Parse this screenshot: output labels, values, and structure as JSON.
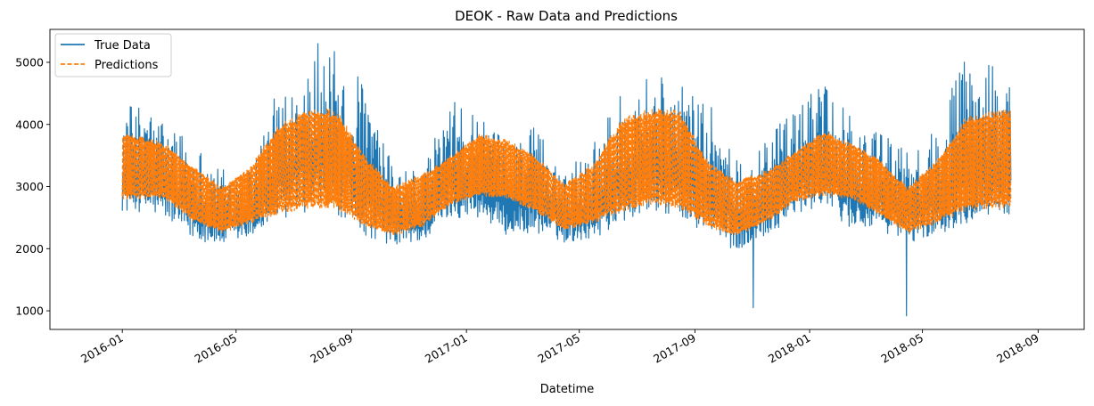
{
  "chart_data": {
    "type": "line",
    "title": "DEOK - Raw Data and Predictions",
    "xlabel": "Datetime",
    "ylabel": "",
    "x_ticks": [
      "2016-01",
      "2016-05",
      "2016-09",
      "2017-01",
      "2017-05",
      "2017-09",
      "2018-01",
      "2018-05",
      "2018-09"
    ],
    "y_ticks": [
      1000,
      2000,
      3000,
      4000,
      5000
    ],
    "xlim": [
      "2015-10-16",
      "2018-10-20"
    ],
    "ylim": [
      700,
      5530
    ],
    "grid": false,
    "legend_position": "top-left",
    "series": [
      {
        "name": "True Data",
        "color": "#1f77b4",
        "style": "solid",
        "x_range": [
          "2016-01-01",
          "2018-08-03"
        ],
        "monthly_band": [
          {
            "month": "2016-01",
            "low": 2600,
            "high": 4350
          },
          {
            "month": "2016-02",
            "low": 2500,
            "high": 4100
          },
          {
            "month": "2016-03",
            "low": 2150,
            "high": 3800
          },
          {
            "month": "2016-04",
            "low": 2050,
            "high": 3300
          },
          {
            "month": "2016-05",
            "low": 2150,
            "high": 3350
          },
          {
            "month": "2016-06",
            "low": 2450,
            "high": 4600
          },
          {
            "month": "2016-07",
            "low": 2600,
            "high": 5100
          },
          {
            "month": "2016-08",
            "low": 2550,
            "high": 5200
          },
          {
            "month": "2016-09",
            "low": 2200,
            "high": 4700
          },
          {
            "month": "2016-10",
            "low": 2050,
            "high": 3300
          },
          {
            "month": "2016-11",
            "low": 2100,
            "high": 3300
          },
          {
            "month": "2016-12",
            "low": 2500,
            "high": 4400
          },
          {
            "month": "2017-01",
            "low": 2500,
            "high": 4100
          },
          {
            "month": "2017-02",
            "low": 2200,
            "high": 3700
          },
          {
            "month": "2017-03",
            "low": 2250,
            "high": 4000
          },
          {
            "month": "2017-04",
            "low": 2100,
            "high": 3350
          },
          {
            "month": "2017-05",
            "low": 2150,
            "high": 3700
          },
          {
            "month": "2017-06",
            "low": 2400,
            "high": 4500
          },
          {
            "month": "2017-07",
            "low": 2600,
            "high": 4950
          },
          {
            "month": "2017-08",
            "low": 2500,
            "high": 4600
          },
          {
            "month": "2017-09",
            "low": 2200,
            "high": 4600
          },
          {
            "month": "2017-10",
            "low": 1950,
            "high": 3450
          },
          {
            "month": "2017-11",
            "low": 2200,
            "high": 3700
          },
          {
            "month": "2017-12",
            "low": 2500,
            "high": 4300
          },
          {
            "month": "2018-01",
            "low": 2700,
            "high": 4650
          },
          {
            "month": "2018-02",
            "low": 2300,
            "high": 4100
          },
          {
            "month": "2018-03",
            "low": 2300,
            "high": 3900
          },
          {
            "month": "2018-04",
            "low": 2100,
            "high": 3650
          },
          {
            "month": "2018-05",
            "low": 2200,
            "high": 3900
          },
          {
            "month": "2018-06",
            "low": 2400,
            "high": 5150
          },
          {
            "month": "2018-07",
            "low": 2500,
            "high": 5000
          },
          {
            "month": "2018-08",
            "low": 2500,
            "high": 4600
          }
        ],
        "spikes": [
          {
            "x": "2016-07-27",
            "y": 5300
          },
          {
            "x": "2017-11-02",
            "y": 1050
          },
          {
            "x": "2018-04-14",
            "y": 920
          }
        ]
      },
      {
        "name": "Predictions",
        "color": "#ff7f0e",
        "style": "dashed",
        "x_range": [
          "2016-01-01",
          "2018-08-03"
        ],
        "monthly_band": [
          {
            "month": "2016-01",
            "low": 2800,
            "high": 3850
          },
          {
            "month": "2016-02",
            "low": 2800,
            "high": 3700
          },
          {
            "month": "2016-03",
            "low": 2450,
            "high": 3350
          },
          {
            "month": "2016-04",
            "low": 2250,
            "high": 3000
          },
          {
            "month": "2016-05",
            "low": 2400,
            "high": 3300
          },
          {
            "month": "2016-06",
            "low": 2550,
            "high": 4000
          },
          {
            "month": "2016-07",
            "low": 2650,
            "high": 4250
          },
          {
            "month": "2016-08",
            "low": 2650,
            "high": 4250
          },
          {
            "month": "2016-09",
            "low": 2350,
            "high": 3500
          },
          {
            "month": "2016-10",
            "low": 2200,
            "high": 3000
          },
          {
            "month": "2016-11",
            "low": 2350,
            "high": 3200
          },
          {
            "month": "2016-12",
            "low": 2700,
            "high": 3500
          },
          {
            "month": "2017-01",
            "low": 2850,
            "high": 3850
          },
          {
            "month": "2017-02",
            "low": 2800,
            "high": 3750
          },
          {
            "month": "2017-03",
            "low": 2600,
            "high": 3500
          },
          {
            "month": "2017-04",
            "low": 2300,
            "high": 3050
          },
          {
            "month": "2017-05",
            "low": 2400,
            "high": 3350
          },
          {
            "month": "2017-06",
            "low": 2600,
            "high": 4100
          },
          {
            "month": "2017-07",
            "low": 2700,
            "high": 4250
          },
          {
            "month": "2017-08",
            "low": 2650,
            "high": 4250
          },
          {
            "month": "2017-09",
            "low": 2350,
            "high": 3400
          },
          {
            "month": "2017-10",
            "low": 2200,
            "high": 3100
          },
          {
            "month": "2017-11",
            "low": 2400,
            "high": 3250
          },
          {
            "month": "2017-12",
            "low": 2750,
            "high": 3550
          },
          {
            "month": "2018-01",
            "low": 2850,
            "high": 3900
          },
          {
            "month": "2018-02",
            "low": 2800,
            "high": 3700
          },
          {
            "month": "2018-03",
            "low": 2550,
            "high": 3450
          },
          {
            "month": "2018-04",
            "low": 2250,
            "high": 3000
          },
          {
            "month": "2018-05",
            "low": 2400,
            "high": 3400
          },
          {
            "month": "2018-06",
            "low": 2600,
            "high": 4100
          },
          {
            "month": "2018-07",
            "low": 2650,
            "high": 4250
          },
          {
            "month": "2018-08",
            "low": 2650,
            "high": 4200
          }
        ]
      }
    ]
  }
}
